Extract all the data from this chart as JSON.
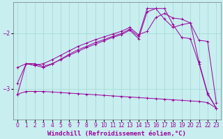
{
  "background_color": "#c8eef0",
  "grid_color": "#a0d8d0",
  "line_color": "#990099",
  "xlim": [
    -0.5,
    23.5
  ],
  "ylim": [
    -3.55,
    -1.45
  ],
  "yticks": [
    -3,
    -2
  ],
  "xticks": [
    0,
    1,
    2,
    3,
    4,
    5,
    6,
    7,
    8,
    9,
    10,
    11,
    12,
    13,
    14,
    15,
    16,
    17,
    18,
    19,
    20,
    21,
    22,
    23
  ],
  "xlabel": "Windchill (Refroidissement éolien,°C)",
  "xlabel_fontsize": 6.5,
  "tick_fontsize": 5.5,
  "series": [
    {
      "x": [
        0,
        1,
        2,
        3,
        4,
        5,
        6,
        7,
        8,
        9,
        10,
        11,
        12,
        13,
        14,
        15,
        16,
        17,
        18,
        19,
        20,
        21,
        22,
        23
      ],
      "y": [
        -3.1,
        -2.55,
        -2.55,
        -2.6,
        -2.55,
        -2.48,
        -2.4,
        -2.33,
        -2.26,
        -2.2,
        -2.14,
        -2.08,
        -2.03,
        -1.95,
        -2.1,
        -1.62,
        -1.56,
        -1.56,
        -1.85,
        -2.08,
        -2.1,
        -2.55,
        -3.1,
        -3.35
      ]
    },
    {
      "x": [
        0,
        1,
        2,
        3,
        4,
        5,
        6,
        7,
        8,
        9,
        10,
        11,
        12,
        13,
        14,
        15,
        16,
        17,
        18,
        19,
        20,
        21,
        22,
        23
      ],
      "y": [
        -2.9,
        -2.55,
        -2.58,
        -2.62,
        -2.56,
        -2.47,
        -2.38,
        -2.3,
        -2.24,
        -2.17,
        -2.12,
        -2.06,
        -2.01,
        -1.93,
        -2.06,
        -1.56,
        -1.56,
        -1.75,
        -1.9,
        -1.85,
        -1.82,
        -2.52,
        -3.08,
        -3.35
      ]
    },
    {
      "x": [
        0,
        1,
        2,
        3,
        4,
        5,
        6,
        7,
        8,
        9,
        10,
        11,
        12,
        13,
        14,
        15,
        16,
        17,
        18,
        19,
        20,
        21,
        22,
        23
      ],
      "y": [
        -2.62,
        -2.55,
        -2.58,
        -2.55,
        -2.48,
        -2.4,
        -2.32,
        -2.24,
        -2.18,
        -2.12,
        -2.07,
        -2.02,
        -1.97,
        -1.9,
        -2.03,
        -1.97,
        -1.72,
        -1.65,
        -1.73,
        -1.75,
        -1.82,
        -2.13,
        -2.15,
        -3.25
      ]
    },
    {
      "x": [
        0,
        1,
        2,
        3,
        4,
        5,
        6,
        7,
        8,
        9,
        10,
        11,
        12,
        13,
        14,
        15,
        16,
        17,
        18,
        19,
        20,
        21,
        22,
        23
      ],
      "y": [
        -3.1,
        -3.05,
        -3.05,
        -3.05,
        -3.06,
        -3.07,
        -3.08,
        -3.09,
        -3.1,
        -3.11,
        -3.12,
        -3.13,
        -3.14,
        -3.15,
        -3.16,
        -3.17,
        -3.18,
        -3.19,
        -3.2,
        -3.21,
        -3.22,
        -3.23,
        -3.25,
        -3.35
      ]
    }
  ]
}
